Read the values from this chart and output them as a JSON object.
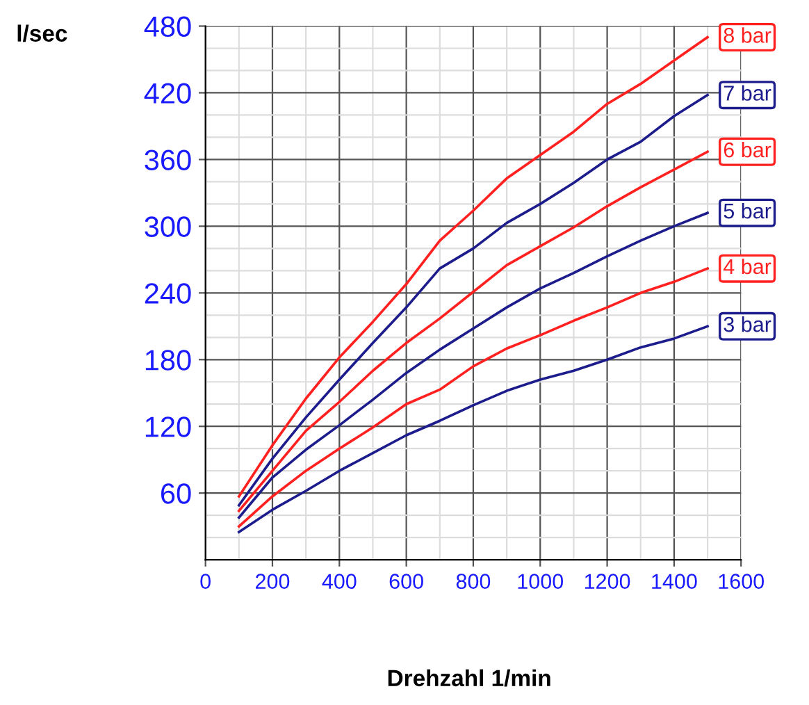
{
  "chart_data": {
    "type": "line",
    "xlabel": "Drehzahl 1/min",
    "ylabel": "l/sec",
    "x": [
      100,
      200,
      300,
      400,
      500,
      600,
      700,
      800,
      900,
      1000,
      1100,
      1200,
      1300,
      1400,
      1500
    ],
    "xlim": [
      0,
      1600
    ],
    "xticks": [
      0,
      200,
      400,
      600,
      800,
      1000,
      1200,
      1400,
      1600
    ],
    "ylim": [
      0,
      480
    ],
    "yticks": [
      60,
      120,
      180,
      240,
      300,
      360,
      420,
      480
    ],
    "grid": true,
    "legend": false,
    "marker": "none",
    "line_style": "solid",
    "series": [
      {
        "name": "8 bar",
        "color": "#ff2020",
        "values": [
          57,
          103,
          145,
          182,
          214,
          248,
          287,
          314,
          343,
          364,
          385,
          410,
          428,
          449,
          470
        ]
      },
      {
        "name": "7 bar",
        "color": "#1c1c8c",
        "values": [
          49,
          91,
          128,
          162,
          195,
          227,
          262,
          280,
          303,
          320,
          339,
          360,
          376,
          399,
          418
        ]
      },
      {
        "name": "6 bar",
        "color": "#ff2020",
        "values": [
          44,
          80,
          116,
          142,
          170,
          195,
          217,
          241,
          265,
          282,
          299,
          318,
          335,
          351,
          367
        ]
      },
      {
        "name": "5 bar",
        "color": "#1c1c8c",
        "values": [
          38,
          74,
          99,
          121,
          144,
          168,
          189,
          208,
          227,
          244,
          258,
          273,
          287,
          300,
          312
        ]
      },
      {
        "name": "4 bar",
        "color": "#ff2020",
        "values": [
          30,
          57,
          80,
          100,
          119,
          140,
          153,
          174,
          190,
          202,
          215,
          227,
          240,
          250,
          262
        ]
      },
      {
        "name": "3 bar",
        "color": "#1c1c8c",
        "values": [
          25,
          45,
          62,
          80,
          96,
          112,
          125,
          139,
          152,
          162,
          170,
          180,
          191,
          199,
          210
        ]
      }
    ]
  }
}
